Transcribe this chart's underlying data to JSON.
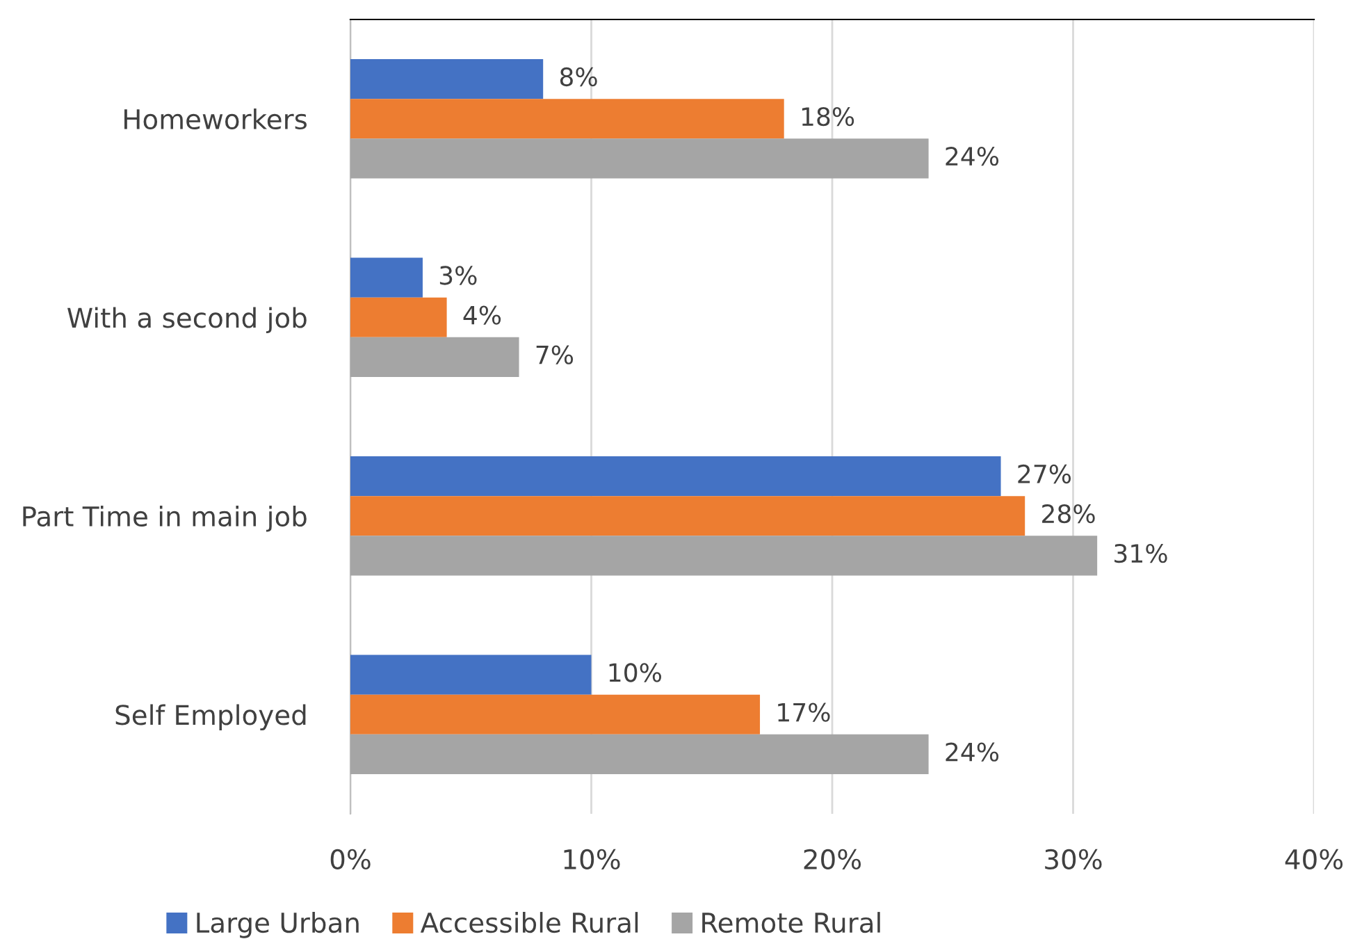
{
  "chart_data": {
    "type": "bar",
    "orientation": "horizontal",
    "categories": [
      "Homeworkers",
      "With a second job",
      "Part Time in main job",
      "Self Employed"
    ],
    "series": [
      {
        "name": "Large Urban",
        "color": "#4472c4",
        "values": [
          8,
          3,
          27,
          10
        ],
        "value_labels": [
          "8%",
          "3%",
          "27%",
          "10%"
        ]
      },
      {
        "name": "Accessible Rural",
        "color": "#ed7d31",
        "values": [
          18,
          4,
          28,
          17
        ],
        "value_labels": [
          "18%",
          "4%",
          "28%",
          "17%"
        ]
      },
      {
        "name": "Remote Rural",
        "color": "#a5a5a5",
        "values": [
          24,
          7,
          31,
          24
        ],
        "value_labels": [
          "24%",
          "7%",
          "31%",
          "24%"
        ]
      }
    ],
    "xlim": [
      0,
      40
    ],
    "xticks": [
      {
        "value": 0,
        "label": "0%"
      },
      {
        "value": 10,
        "label": "10%"
      },
      {
        "value": 20,
        "label": "20%"
      },
      {
        "value": 30,
        "label": "30%"
      },
      {
        "value": 40,
        "label": "40%"
      }
    ],
    "grid": "x",
    "legend": "bottom"
  }
}
